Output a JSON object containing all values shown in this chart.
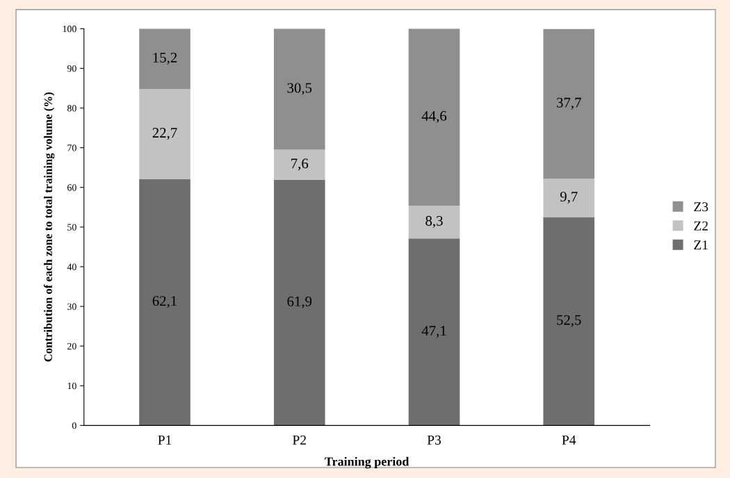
{
  "chart_data": {
    "type": "bar",
    "stacked": true,
    "xlabel": "Training period",
    "ylabel": "Contribution of each zone to total training volume (%)",
    "categories": [
      "P1",
      "P2",
      "P3",
      "P4"
    ],
    "series": [
      {
        "name": "Z1",
        "color": "#6e6e6e",
        "values": [
          62.1,
          61.9,
          47.1,
          52.5
        ],
        "value_labels": [
          "62,1",
          "61,9",
          "47,1",
          "52,5"
        ]
      },
      {
        "name": "Z2",
        "color": "#c2c2c2",
        "values": [
          22.7,
          7.6,
          8.3,
          9.7
        ],
        "value_labels": [
          "22,7",
          "7,6",
          "8,3",
          "9,7"
        ]
      },
      {
        "name": "Z3",
        "color": "#8f8f8f",
        "values": [
          15.2,
          30.5,
          44.6,
          37.7
        ],
        "value_labels": [
          "15,2",
          "30,5",
          "44,6",
          "37,7"
        ]
      }
    ],
    "ylim": [
      0,
      100
    ],
    "yticks": [
      0,
      10,
      20,
      30,
      40,
      50,
      60,
      70,
      80,
      90,
      100
    ],
    "grid": false,
    "legend": "right"
  }
}
